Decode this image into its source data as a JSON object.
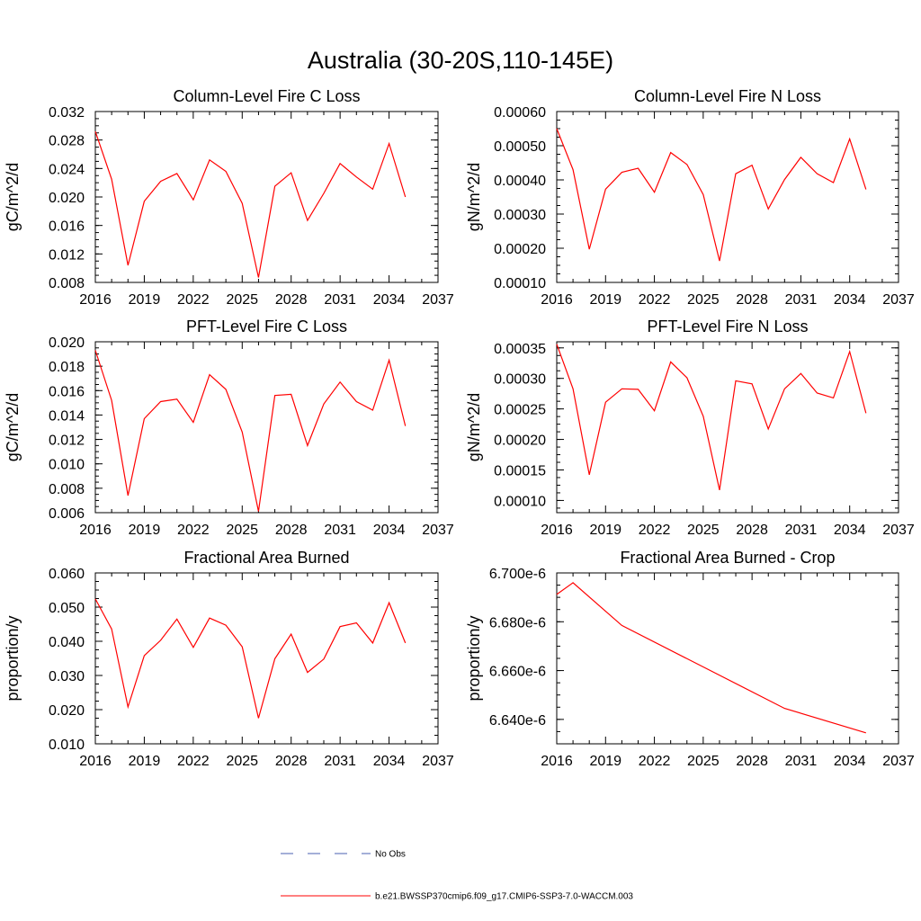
{
  "title": "Australia (30-20S,110-145E)",
  "colors": {
    "series": "#ff0000",
    "obs": "#4a5fb0",
    "axis": "#000000"
  },
  "legend": {
    "items": [
      {
        "label": "No Obs",
        "style": "dashed",
        "color": "#4a5fb0"
      },
      {
        "label": "b.e21.BWSSP370cmip6.f09_g17.CMIP6-SSP3-7.0-WACCM.003",
        "style": "solid",
        "color": "#ff0000"
      }
    ]
  },
  "chart_data": [
    {
      "type": "line",
      "title": "Column-Level Fire C Loss",
      "ylabel": "gC/m^2/d",
      "xlim": [
        2016,
        2037
      ],
      "xticks": [
        "2016",
        "2019",
        "2022",
        "2025",
        "2028",
        "2031",
        "2034",
        "2037"
      ],
      "ylim": [
        0.008,
        0.032
      ],
      "yticks": [
        "0.008",
        "0.012",
        "0.016",
        "0.020",
        "0.024",
        "0.028",
        "0.032"
      ],
      "x": [
        2016,
        2017,
        2018,
        2019,
        2020,
        2021,
        2022,
        2023,
        2024,
        2025,
        2026,
        2027,
        2028,
        2029,
        2030,
        2031,
        2032,
        2033,
        2034,
        2035
      ],
      "series": [
        {
          "values": [
            0.0292,
            0.0225,
            0.0104,
            0.0194,
            0.0222,
            0.0233,
            0.0196,
            0.0252,
            0.0236,
            0.0191,
            0.0087,
            0.0215,
            0.0234,
            0.0167,
            0.0205,
            0.0247,
            0.0228,
            0.0211,
            0.0275,
            0.02
          ]
        }
      ]
    },
    {
      "type": "line",
      "title": "Column-Level Fire N Loss",
      "ylabel": "gN/m^2/d",
      "xlim": [
        2016,
        2037
      ],
      "xticks": [
        "2016",
        "2019",
        "2022",
        "2025",
        "2028",
        "2031",
        "2034",
        "2037"
      ],
      "ylim": [
        0.0001,
        0.0006
      ],
      "yticks": [
        "0.00010",
        "0.00020",
        "0.00030",
        "0.00040",
        "0.00050",
        "0.00060"
      ],
      "x": [
        2016,
        2017,
        2018,
        2019,
        2020,
        2021,
        2022,
        2023,
        2024,
        2025,
        2026,
        2027,
        2028,
        2029,
        2030,
        2031,
        2032,
        2033,
        2034,
        2035
      ],
      "series": [
        {
          "values": [
            0.00055,
            0.00043,
            0.000197,
            0.000373,
            0.000422,
            0.000434,
            0.000364,
            0.00048,
            0.000445,
            0.000357,
            0.000163,
            0.000418,
            0.000443,
            0.000315,
            0.000401,
            0.000466,
            0.000418,
            0.000392,
            0.00052,
            0.000372
          ]
        }
      ]
    },
    {
      "type": "line",
      "title": "PFT-Level Fire C Loss",
      "ylabel": "gC/m^2/d",
      "xlim": [
        2016,
        2037
      ],
      "xticks": [
        "2016",
        "2019",
        "2022",
        "2025",
        "2028",
        "2031",
        "2034",
        "2037"
      ],
      "ylim": [
        0.006,
        0.02
      ],
      "yticks": [
        "0.006",
        "0.008",
        "0.010",
        "0.012",
        "0.014",
        "0.016",
        "0.018",
        "0.020"
      ],
      "x": [
        2016,
        2017,
        2018,
        2019,
        2020,
        2021,
        2022,
        2023,
        2024,
        2025,
        2026,
        2027,
        2028,
        2029,
        2030,
        2031,
        2032,
        2033,
        2034,
        2035
      ],
      "series": [
        {
          "values": [
            0.0193,
            0.0152,
            0.0074,
            0.0137,
            0.0151,
            0.0153,
            0.0134,
            0.0173,
            0.0161,
            0.0126,
            0.0061,
            0.0156,
            0.0157,
            0.0115,
            0.0149,
            0.0167,
            0.0151,
            0.0144,
            0.0185,
            0.0131
          ]
        }
      ]
    },
    {
      "type": "line",
      "title": "PFT-Level Fire N Loss",
      "ylabel": "gN/m^2/d",
      "xlim": [
        2016,
        2037
      ],
      "xticks": [
        "2016",
        "2019",
        "2022",
        "2025",
        "2028",
        "2031",
        "2034",
        "2037"
      ],
      "ylim": [
        8e-05,
        0.00036
      ],
      "yticks": [
        "0.00010",
        "0.00015",
        "0.00020",
        "0.00025",
        "0.00030",
        "0.00035"
      ],
      "x": [
        2016,
        2017,
        2018,
        2019,
        2020,
        2021,
        2022,
        2023,
        2024,
        2025,
        2026,
        2027,
        2028,
        2029,
        2030,
        2031,
        2032,
        2033,
        2034,
        2035
      ],
      "series": [
        {
          "values": [
            0.000356,
            0.000283,
            0.000142,
            0.000261,
            0.000283,
            0.000282,
            0.000247,
            0.000327,
            0.000301,
            0.000238,
            0.000117,
            0.000296,
            0.000291,
            0.000217,
            0.000283,
            0.000308,
            0.000276,
            0.000268,
            0.000344,
            0.000243
          ]
        }
      ]
    },
    {
      "type": "line",
      "title": "Fractional Area Burned",
      "ylabel": "proportion/y",
      "xlim": [
        2016,
        2037
      ],
      "xticks": [
        "2016",
        "2019",
        "2022",
        "2025",
        "2028",
        "2031",
        "2034",
        "2037"
      ],
      "ylim": [
        0.01,
        0.06
      ],
      "yticks": [
        "0.010",
        "0.020",
        "0.030",
        "0.040",
        "0.050",
        "0.060"
      ],
      "x": [
        2016,
        2017,
        2018,
        2019,
        2020,
        2021,
        2022,
        2023,
        2024,
        2025,
        2026,
        2027,
        2028,
        2029,
        2030,
        2031,
        2032,
        2033,
        2034,
        2035
      ],
      "series": [
        {
          "values": [
            0.0524,
            0.0436,
            0.0208,
            0.0358,
            0.0403,
            0.0465,
            0.0382,
            0.0468,
            0.0447,
            0.0384,
            0.0175,
            0.0349,
            0.0421,
            0.0309,
            0.0348,
            0.0443,
            0.0454,
            0.0395,
            0.0513,
            0.0395
          ]
        }
      ]
    },
    {
      "type": "line",
      "title": "Fractional Area Burned - Crop",
      "ylabel": "proportion/y",
      "xlim": [
        2016,
        2037
      ],
      "xticks": [
        "2016",
        "2019",
        "2022",
        "2025",
        "2028",
        "2031",
        "2034",
        "2037"
      ],
      "ylim": [
        6.63e-06,
        6.7e-06
      ],
      "yticks": [
        "6.640e-6",
        "6.660e-6",
        "6.680e-6",
        "6.700e-6"
      ],
      "x": [
        2016,
        2017,
        2020,
        2030,
        2035
      ],
      "series": [
        {
          "values": [
            6.6912e-06,
            6.696e-06,
            6.6785e-06,
            6.6445e-06,
            6.6345e-06
          ]
        }
      ]
    }
  ]
}
